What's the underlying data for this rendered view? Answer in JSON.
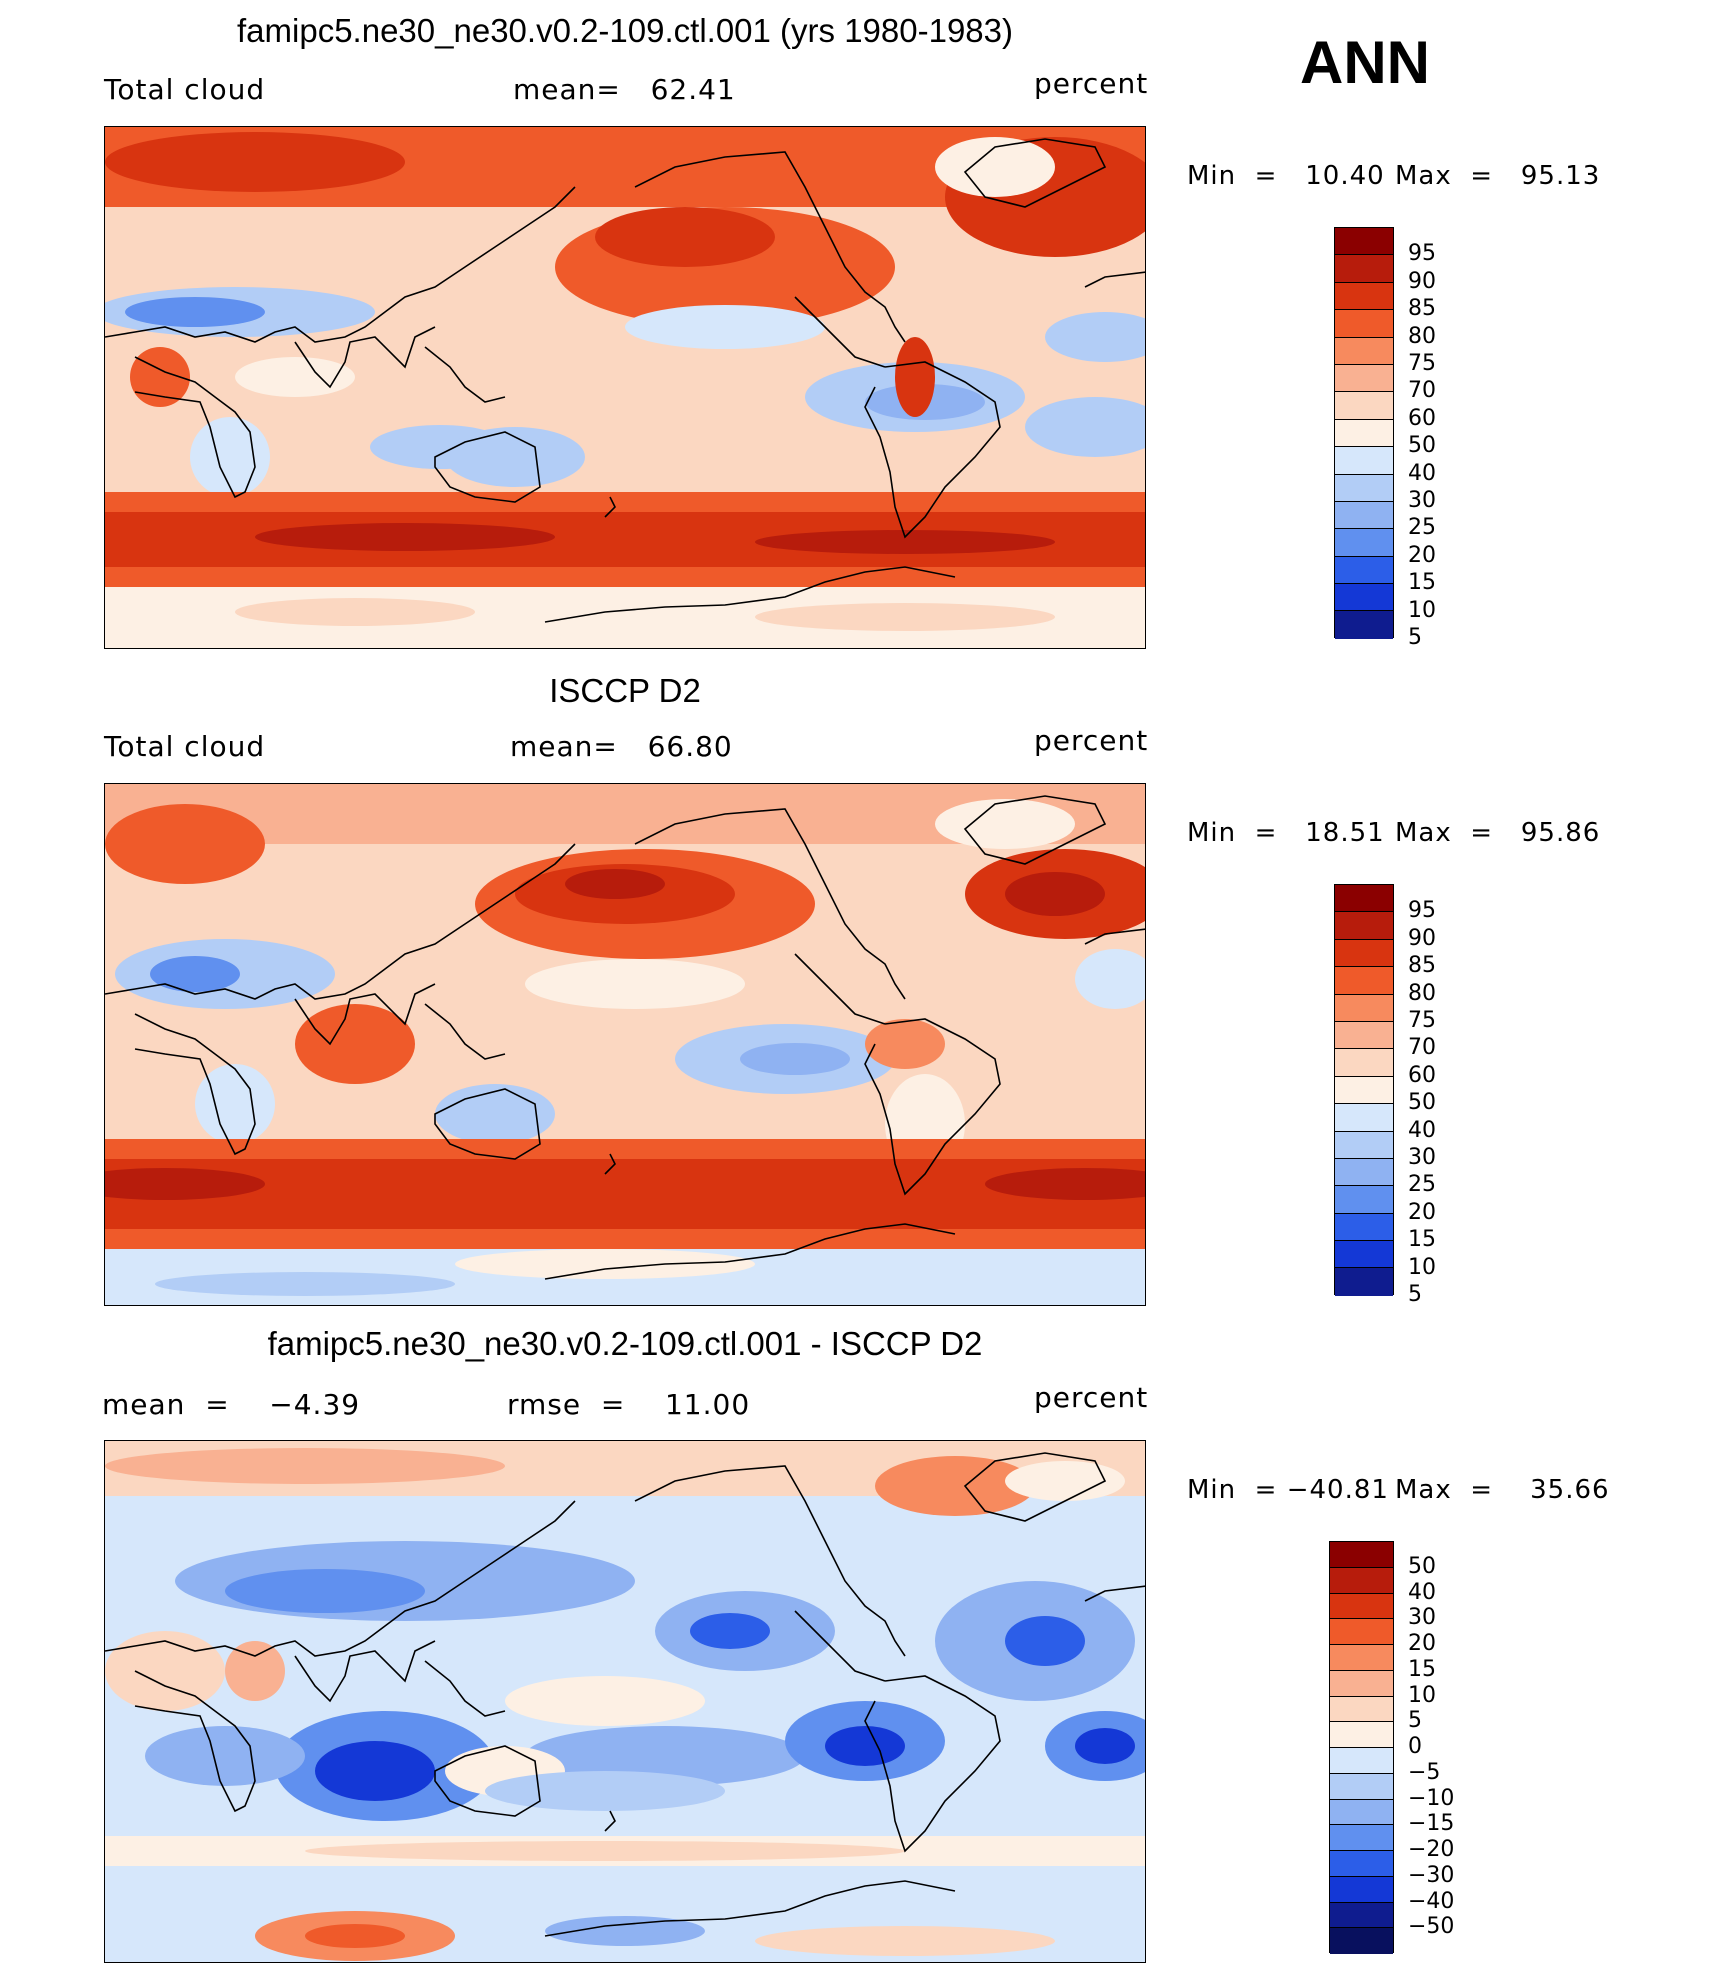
{
  "season": "ANN",
  "chart_data": [
    {
      "type": "heatmap",
      "title": "famipc5.ne30_ne30.v0.2-109.ctl.001 (yrs 1980-1983)",
      "left_label": "Total cloud",
      "center_label": "mean=   62.41",
      "units": "percent",
      "mean": 62.41,
      "min": 10.4,
      "max": 95.13,
      "min_text": "Min  =   10.40",
      "max_text": "Max  =   95.13",
      "levels": [
        "95",
        "90",
        "85",
        "80",
        "75",
        "70",
        "60",
        "50",
        "40",
        "30",
        "25",
        "20",
        "15",
        "10",
        "5"
      ],
      "colors": [
        "#8b0000",
        "#b71c0c",
        "#d83410",
        "#ef5a2a",
        "#f78a5e",
        "#f9b192",
        "#fbd7c1",
        "#fdf0e4",
        "#d6e7fb",
        "#b2cdf6",
        "#8fb2f2",
        "#6090ef",
        "#2c5ee8",
        "#1438d6",
        "#0f1c8f"
      ]
    },
    {
      "type": "heatmap",
      "title": "ISCCP D2",
      "left_label": "Total cloud",
      "center_label": "mean=   66.80",
      "units": "percent",
      "mean": 66.8,
      "min": 18.51,
      "max": 95.86,
      "min_text": "Min  =   18.51",
      "max_text": "Max  =   95.86",
      "levels": [
        "95",
        "90",
        "85",
        "80",
        "75",
        "70",
        "60",
        "50",
        "40",
        "30",
        "25",
        "20",
        "15",
        "10",
        "5"
      ],
      "colors": [
        "#8b0000",
        "#b71c0c",
        "#d83410",
        "#ef5a2a",
        "#f78a5e",
        "#f9b192",
        "#fbd7c1",
        "#fdf0e4",
        "#d6e7fb",
        "#b2cdf6",
        "#8fb2f2",
        "#6090ef",
        "#2c5ee8",
        "#1438d6",
        "#0f1c8f"
      ]
    },
    {
      "type": "heatmap",
      "title": "famipc5.ne30_ne30.v0.2-109.ctl.001 - ISCCP D2",
      "left_label": "mean  =    −4.39",
      "center_label": "rmse  =    11.00",
      "units": "percent",
      "mean": -4.39,
      "rmse": 11.0,
      "min": -40.81,
      "max": 35.66,
      "min_text": "Min  = −40.81",
      "max_text": "Max  =    35.66",
      "levels": [
        "50",
        "40",
        "30",
        "20",
        "15",
        "10",
        "5",
        "0",
        "−5",
        "−10",
        "−15",
        "−20",
        "−30",
        "−40",
        "−50"
      ],
      "colors": [
        "#8b0000",
        "#b71c0c",
        "#d83410",
        "#ef5a2a",
        "#f78a5e",
        "#f9b192",
        "#fbd7c1",
        "#fdf0e4",
        "#d6e7fb",
        "#b2cdf6",
        "#8fb2f2",
        "#6090ef",
        "#2c5ee8",
        "#1438d6",
        "#0f1c8f",
        "#08105e"
      ]
    }
  ]
}
